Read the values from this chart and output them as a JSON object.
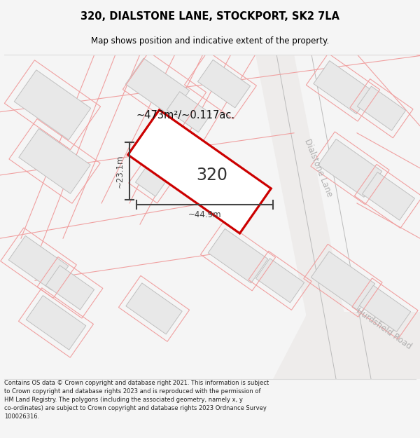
{
  "title_line1": "320, DIALSTONE LANE, STOCKPORT, SK2 7LA",
  "title_line2": "Map shows position and indicative extent of the property.",
  "footer_text": "Contains OS data © Crown copyright and database right 2021. This information is subject to Crown copyright and database rights 2023 and is reproduced with the permission of HM Land Registry. The polygons (including the associated geometry, namely x, y co-ordinates) are subject to Crown copyright and database rights 2023 Ordnance Survey 100026316.",
  "area_label": "~473m²/~0.117ac.",
  "width_label": "~44.9m",
  "height_label": "~23.1m",
  "plot_number": "320",
  "map_bg": "#ffffff",
  "building_fill": "#e8e8e8",
  "building_edge": "#c0c0c0",
  "plot_fill": "#ffffff",
  "plot_edge": "#cc0000",
  "property_line_color": "#f0a0a0",
  "road_fill": "#eeeceb",
  "road_edge": "#d0d0d0",
  "street_name_color": "#b0b0b0",
  "dim_color": "#444444",
  "title_color": "#000000",
  "footer_color": "#222222",
  "bg_color": "#f5f5f5"
}
